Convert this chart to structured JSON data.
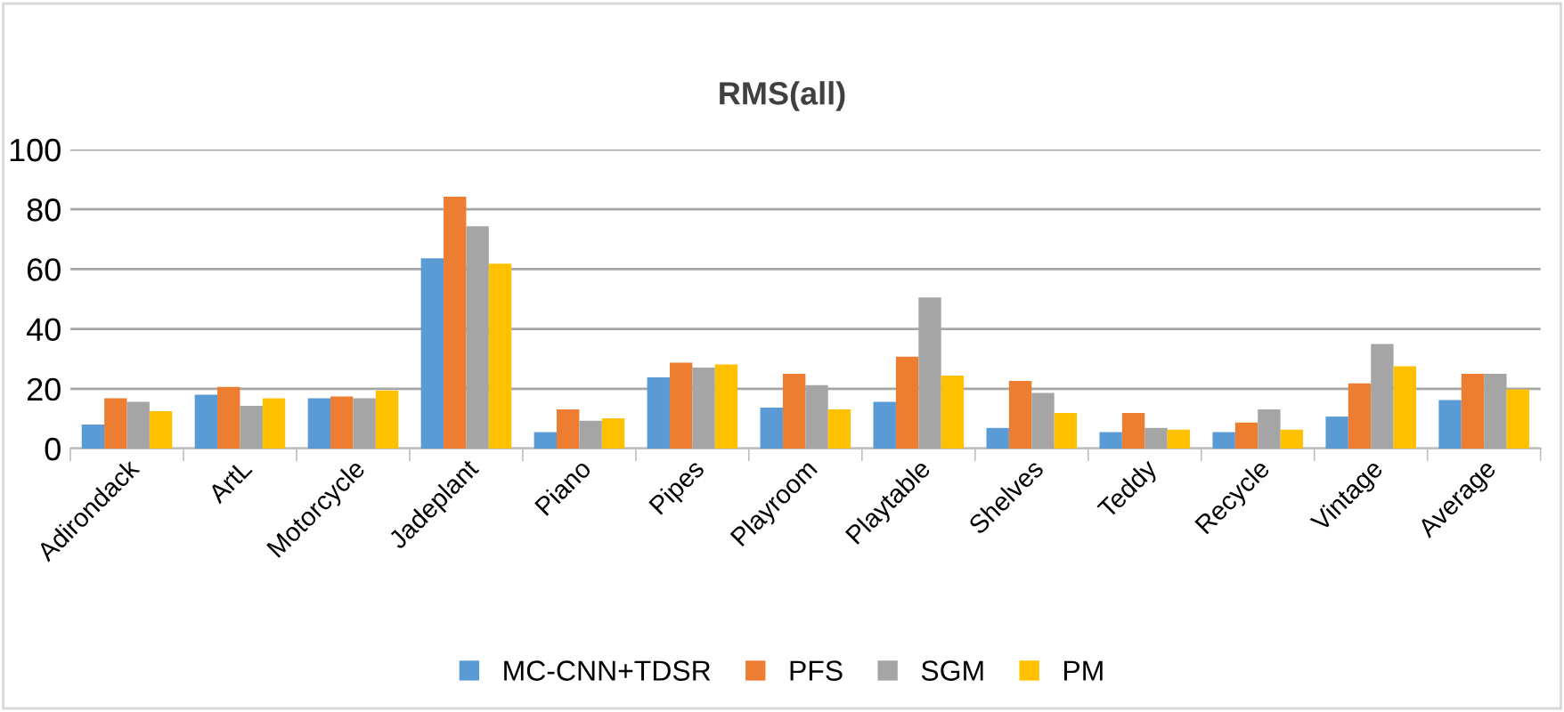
{
  "chart_data": {
    "type": "bar",
    "title": "RMS(all)",
    "categories": [
      "Adirondack",
      "ArtL",
      "Motorcycle",
      "Jadeplant",
      "Piano",
      "Pipes",
      "Playroom",
      "Playtable",
      "Shelves",
      "Teddy",
      "Recycle",
      "Vintage",
      "Average"
    ],
    "series": [
      {
        "name": "MC-CNN+TDSR",
        "color": "#5b9bd5",
        "values": [
          8,
          18,
          16.8,
          63.6,
          5.5,
          23.8,
          13.7,
          15.6,
          6.9,
          5.5,
          5.5,
          10.7,
          16.2
        ]
      },
      {
        "name": "PFS",
        "color": "#ed7d31",
        "values": [
          16.8,
          20.6,
          17.4,
          84.2,
          13.1,
          28.7,
          25,
          30.7,
          22.6,
          11.9,
          8.7,
          21.8,
          25
        ]
      },
      {
        "name": "SGM",
        "color": "#a5a5a5",
        "values": [
          15.6,
          14.3,
          16.8,
          74.3,
          9.3,
          27.1,
          21.2,
          50.5,
          18.6,
          6.9,
          13.1,
          35,
          25
        ]
      },
      {
        "name": "PM",
        "color": "#ffc000",
        "values": [
          12.5,
          16.8,
          19.4,
          61.8,
          10.1,
          28.1,
          13.1,
          24.4,
          11.9,
          6.3,
          6.3,
          27.5,
          19.8
        ]
      }
    ],
    "ylim": [
      0,
      100
    ],
    "yticks": [
      0,
      20,
      40,
      60,
      80,
      100
    ],
    "grid": "y",
    "legend": "bottom"
  }
}
